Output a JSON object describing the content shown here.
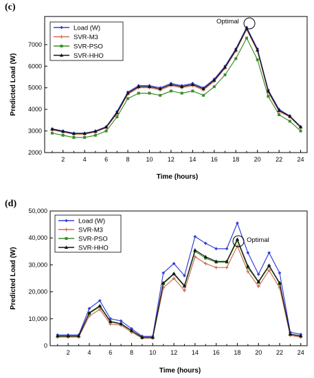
{
  "chart_data": [
    {
      "panel": "(c)",
      "type": "line",
      "xlabel": "Time (hours)",
      "ylabel": "Predicted Load (W)",
      "xlim": [
        0.3,
        24.6
      ],
      "ylim": [
        2000,
        8300
      ],
      "xticks": [
        2,
        4,
        6,
        8,
        10,
        12,
        14,
        16,
        18,
        20,
        22,
        24
      ],
      "yticks": [
        2000,
        3000,
        4000,
        5000,
        6000,
        7000
      ],
      "ytick_labels": [
        "2000",
        "3000",
        "4000",
        "5000",
        "6000",
        "7000"
      ],
      "x": [
        1,
        2,
        3,
        4,
        5,
        6,
        7,
        8,
        9,
        10,
        11,
        12,
        13,
        14,
        15,
        16,
        17,
        18,
        19,
        20,
        21,
        22,
        23,
        24
      ],
      "series": [
        {
          "name": "Load (W)",
          "color": "#3340d8",
          "marker": "diamond",
          "values": [
            3100,
            3000,
            2900,
            2900,
            3000,
            3200,
            3900,
            4800,
            5100,
            5100,
            5000,
            5200,
            5100,
            5200,
            5000,
            5400,
            6000,
            6800,
            7800,
            6800,
            4900,
            4000,
            3700,
            3200
          ]
        },
        {
          "name": "SVR-M3",
          "color": "#d06a52",
          "marker": "plus",
          "values": [
            3050,
            2950,
            2850,
            2850,
            2950,
            3150,
            3800,
            4700,
            5000,
            5000,
            4900,
            5100,
            5000,
            5100,
            4900,
            5300,
            5900,
            6700,
            7700,
            6700,
            4800,
            3900,
            3650,
            3150
          ]
        },
        {
          "name": "SVR-PSO",
          "color": "#3c8c2c",
          "marker": "square",
          "values": [
            2900,
            2800,
            2700,
            2700,
            2800,
            3000,
            3650,
            4500,
            4750,
            4750,
            4650,
            4850,
            4750,
            4850,
            4650,
            5050,
            5600,
            6350,
            7300,
            6300,
            4600,
            3750,
            3450,
            3000
          ]
        },
        {
          "name": "SVR-HHO",
          "color": "#111111",
          "marker": "triangle",
          "values": [
            3080,
            2980,
            2880,
            2880,
            2980,
            3180,
            3850,
            4750,
            5050,
            5050,
            4950,
            5150,
            5050,
            5150,
            4950,
            5350,
            5950,
            6750,
            7750,
            6750,
            4850,
            3950,
            3680,
            3180
          ]
        }
      ],
      "legend": "top-left",
      "annotation": {
        "text": "Optimal",
        "x": 19,
        "y": 7800
      }
    },
    {
      "panel": "(d)",
      "type": "line",
      "xlabel": "Time (hours)",
      "ylabel": "Predicted Load (W)",
      "xlim": [
        0.3,
        24.6
      ],
      "ylim": [
        0,
        50000
      ],
      "xticks": [
        2,
        4,
        6,
        8,
        10,
        12,
        14,
        16,
        18,
        20,
        22,
        24
      ],
      "yticks": [
        0,
        10000,
        20000,
        30000,
        40000,
        50000
      ],
      "ytick_labels": [
        "0",
        "10,000",
        "20,000",
        "30,000",
        "40,000",
        "50,000"
      ],
      "x": [
        1,
        2,
        3,
        4,
        5,
        6,
        7,
        8,
        9,
        10,
        11,
        12,
        13,
        14,
        15,
        16,
        17,
        18,
        19,
        20,
        21,
        22,
        23,
        24
      ],
      "series": [
        {
          "name": "Load (W)",
          "color": "#3340d8",
          "marker": "diamond",
          "values": [
            4000,
            4000,
            4000,
            13800,
            16700,
            10000,
            9200,
            6300,
            3500,
            3500,
            27000,
            30500,
            26000,
            40500,
            38000,
            36000,
            36000,
            45500,
            34500,
            26500,
            34500,
            27000,
            5000,
            4200
          ]
        },
        {
          "name": "SVR-M3",
          "color": "#d06a52",
          "marker": "plus",
          "values": [
            3200,
            3200,
            3200,
            11000,
            13500,
            8000,
            7600,
            5000,
            2800,
            2800,
            21500,
            25000,
            20500,
            33000,
            30500,
            29000,
            29000,
            37000,
            27500,
            22000,
            28000,
            21500,
            3800,
            3200
          ]
        },
        {
          "name": "SVR-PSO",
          "color": "#3c8c2c",
          "marker": "square",
          "values": [
            3500,
            3500,
            3500,
            12000,
            14500,
            8800,
            8000,
            5500,
            3000,
            3000,
            23000,
            26500,
            22000,
            35000,
            32500,
            31000,
            31000,
            39000,
            29000,
            23500,
            29500,
            23000,
            4200,
            3500
          ]
        },
        {
          "name": "SVR-HHO",
          "color": "#111111",
          "marker": "triangle",
          "values": [
            3600,
            3600,
            3600,
            12200,
            14800,
            9000,
            8200,
            5600,
            3100,
            3100,
            23300,
            26800,
            22300,
            35500,
            33000,
            31300,
            31300,
            39500,
            29500,
            23800,
            29800,
            23300,
            4300,
            3600
          ]
        }
      ],
      "legend": "top-left",
      "annotation": {
        "text": "Optimal",
        "x": 18,
        "y": 39500
      }
    }
  ]
}
